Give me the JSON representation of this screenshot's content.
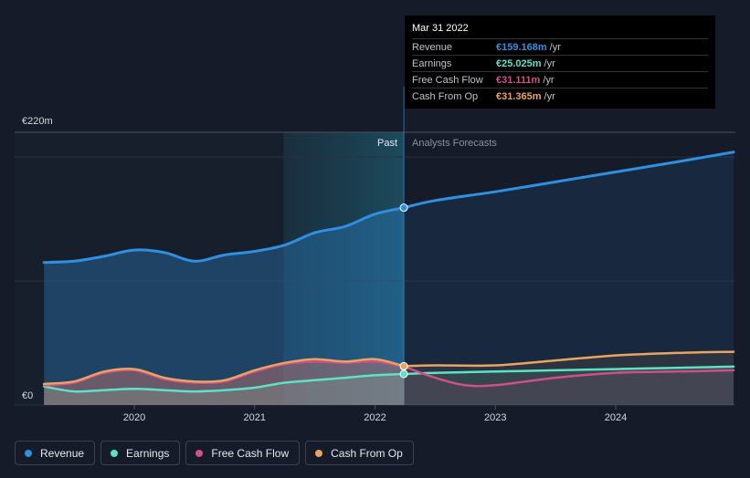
{
  "chart_data": {
    "type": "line",
    "y_axis": {
      "top_label": "€220m",
      "bottom_label": "€0",
      "ylim": [
        0,
        220
      ]
    },
    "x_ticks": [
      "2020",
      "2021",
      "2022",
      "2023",
      "2024"
    ],
    "region_labels": {
      "past": "Past",
      "forecast": "Analysts Forecasts"
    },
    "divider_x": 2022.24,
    "series": [
      {
        "name": "Revenue",
        "color": "#2f8fe0",
        "past": [
          [
            2019.25,
            115
          ],
          [
            2019.5,
            116
          ],
          [
            2019.75,
            120
          ],
          [
            2020.0,
            125
          ],
          [
            2020.25,
            123
          ],
          [
            2020.5,
            116
          ],
          [
            2020.75,
            121
          ],
          [
            2021.0,
            124
          ],
          [
            2021.25,
            129
          ],
          [
            2021.5,
            139
          ],
          [
            2021.75,
            144
          ],
          [
            2022.0,
            154
          ],
          [
            2022.24,
            159.168
          ]
        ],
        "forecast": [
          [
            2022.24,
            159.168
          ],
          [
            2022.5,
            165
          ],
          [
            2023.0,
            172
          ],
          [
            2023.5,
            180
          ],
          [
            2024.0,
            188
          ],
          [
            2024.5,
            196
          ],
          [
            2024.98,
            204
          ]
        ]
      },
      {
        "name": "Earnings",
        "color": "#5ee2c6",
        "past": [
          [
            2019.25,
            15
          ],
          [
            2019.5,
            11
          ],
          [
            2019.75,
            12
          ],
          [
            2020.0,
            13
          ],
          [
            2020.25,
            12
          ],
          [
            2020.5,
            11
          ],
          [
            2020.75,
            12
          ],
          [
            2021.0,
            14
          ],
          [
            2021.25,
            18
          ],
          [
            2021.5,
            20
          ],
          [
            2021.75,
            22
          ],
          [
            2022.0,
            24
          ],
          [
            2022.24,
            25.025
          ]
        ],
        "forecast": [
          [
            2022.24,
            25.025
          ],
          [
            2022.5,
            26
          ],
          [
            2023.0,
            27
          ],
          [
            2023.5,
            28
          ],
          [
            2024.0,
            29
          ],
          [
            2024.5,
            30
          ],
          [
            2024.98,
            31
          ]
        ]
      },
      {
        "name": "Free Cash Flow",
        "color": "#d14f88",
        "past": [
          [
            2019.25,
            16
          ],
          [
            2019.5,
            18
          ],
          [
            2019.75,
            26
          ],
          [
            2020.0,
            28
          ],
          [
            2020.25,
            21
          ],
          [
            2020.5,
            18
          ],
          [
            2020.75,
            19
          ],
          [
            2021.0,
            27
          ],
          [
            2021.25,
            33
          ],
          [
            2021.5,
            35
          ],
          [
            2021.75,
            34
          ],
          [
            2022.0,
            35
          ],
          [
            2022.24,
            31.111
          ]
        ],
        "forecast": [
          [
            2022.24,
            31.111
          ],
          [
            2022.5,
            22
          ],
          [
            2022.75,
            16
          ],
          [
            2023.0,
            16
          ],
          [
            2023.5,
            22
          ],
          [
            2024.0,
            26
          ],
          [
            2024.5,
            27
          ],
          [
            2024.98,
            28
          ]
        ]
      },
      {
        "name": "Cash From Op",
        "color": "#e9a560",
        "past": [
          [
            2019.25,
            17
          ],
          [
            2019.5,
            19
          ],
          [
            2019.75,
            27
          ],
          [
            2020.0,
            29
          ],
          [
            2020.25,
            22
          ],
          [
            2020.5,
            19
          ],
          [
            2020.75,
            20
          ],
          [
            2021.0,
            28
          ],
          [
            2021.25,
            34
          ],
          [
            2021.5,
            37
          ],
          [
            2021.75,
            35
          ],
          [
            2022.0,
            37
          ],
          [
            2022.24,
            31.365
          ]
        ],
        "forecast": [
          [
            2022.24,
            31.365
          ],
          [
            2022.5,
            32
          ],
          [
            2023.0,
            32
          ],
          [
            2023.5,
            36
          ],
          [
            2024.0,
            40
          ],
          [
            2024.5,
            42
          ],
          [
            2024.98,
            43
          ]
        ]
      }
    ]
  },
  "tooltip": {
    "date": "Mar 31 2022",
    "rows": [
      {
        "label": "Revenue",
        "value": "€159.168m",
        "unit": "/yr",
        "color": "#2f8fe0"
      },
      {
        "label": "Earnings",
        "value": "€25.025m",
        "unit": "/yr",
        "color": "#5ee2c6"
      },
      {
        "label": "Free Cash Flow",
        "value": "€31.111m",
        "unit": "/yr",
        "color": "#d14f88"
      },
      {
        "label": "Cash From Op",
        "value": "€31.365m",
        "unit": "/yr",
        "color": "#e9a560"
      }
    ]
  },
  "legend": [
    {
      "label": "Revenue",
      "color": "#2f8fe0"
    },
    {
      "label": "Earnings",
      "color": "#5ee2c6"
    },
    {
      "label": "Free Cash Flow",
      "color": "#d14f88"
    },
    {
      "label": "Cash From Op",
      "color": "#e9a560"
    }
  ]
}
